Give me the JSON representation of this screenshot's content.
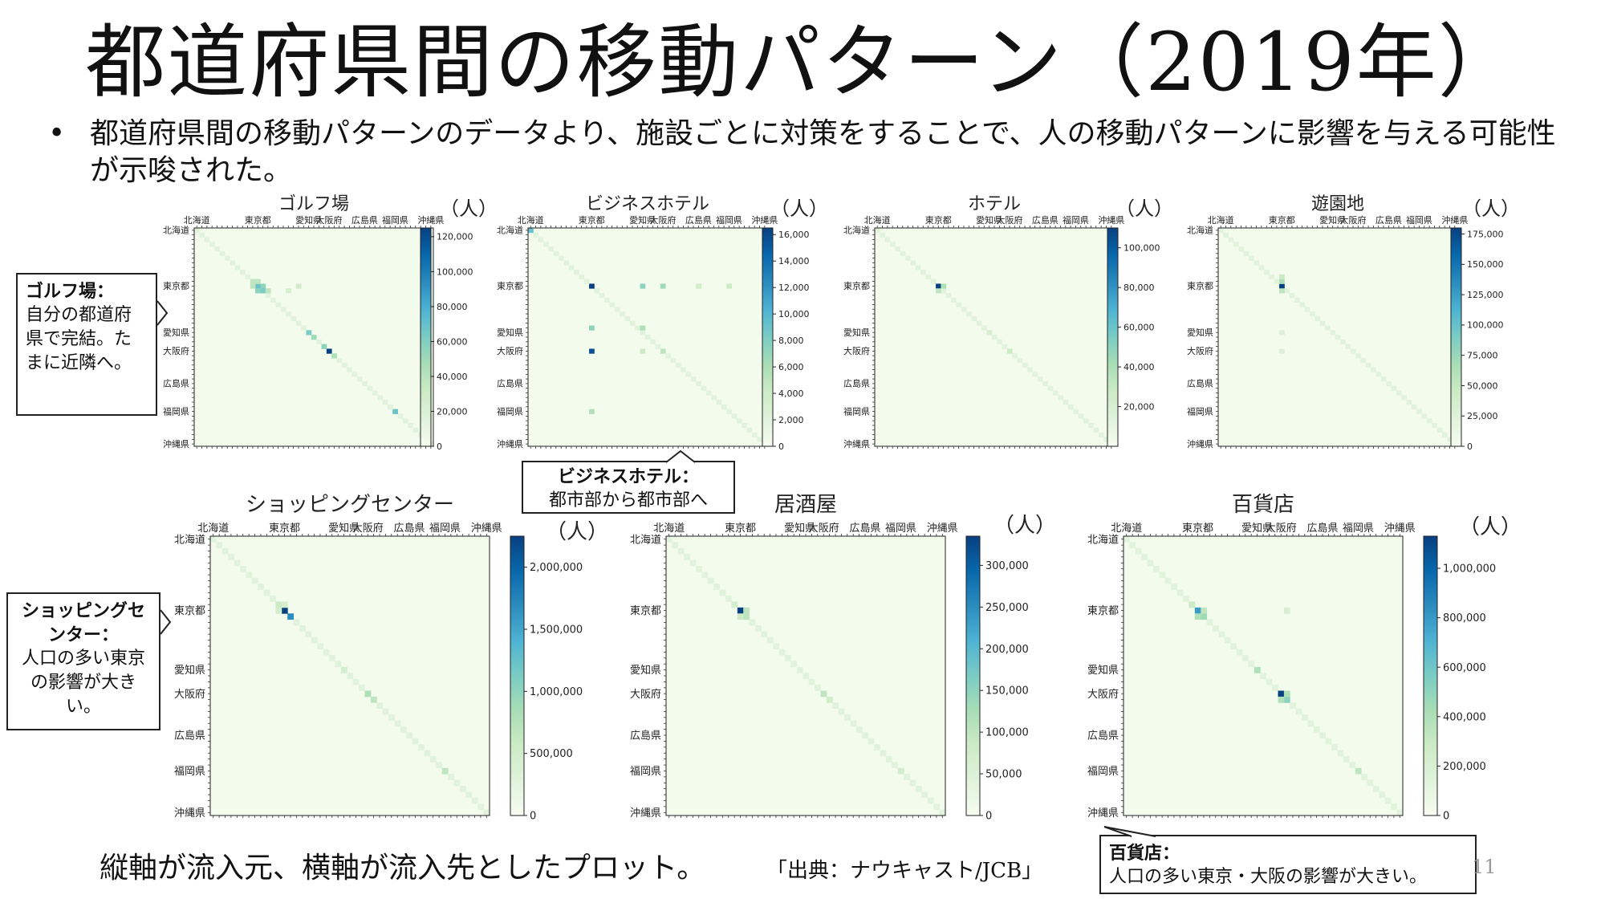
{
  "slide": {
    "title": "都道府県間の移動パターン（2019年）",
    "bullet": "都道府県間の移動パターンのデータより、施設ごとに対策をすることで、人の移動パターンに影響を与える可能性が示唆された。",
    "footer": "縦軸が流入元、横軸が流入先としたプロット。",
    "source": "「出典：ナウキャスト/JCB」",
    "page_number": "11",
    "colormap": "GnBu",
    "unit": "（人）"
  },
  "callouts": {
    "golf": {
      "head": "ゴルフ場：",
      "body": "自分の都道府県で完結。たまに近隣へ。"
    },
    "business_hotel": {
      "head": "ビジネスホテル：",
      "body": "都市部から都市部へ"
    },
    "shopping": {
      "head": "ショッピングセンター：",
      "body": "人口の多い東京の影響が大きい。"
    },
    "department": {
      "head": "百貨店：",
      "body": "人口の多い東京・大阪の影響が大きい。"
    }
  },
  "chart_data": [
    {
      "type": "heatmap",
      "title": "ゴルフ場",
      "unit": "（人）",
      "x_tick_labels": [
        "北海道",
        "東京都",
        "愛知県",
        "大阪府",
        "広島県",
        "福岡県",
        "沖縄県"
      ],
      "y_tick_labels": [
        "北海道",
        "東京都",
        "愛知県",
        "大阪府",
        "広島県",
        "福岡県",
        "沖縄県"
      ],
      "colorbar_ticks": [
        "0",
        "20,000",
        "40,000",
        "60,000",
        "80,000",
        "100,000",
        "120,000"
      ],
      "colorbar_range": [
        0,
        125000
      ]
    },
    {
      "type": "heatmap",
      "title": "ビジネスホテル",
      "unit": "（人）",
      "x_tick_labels": [
        "北海道",
        "東京都",
        "愛知県",
        "大阪府",
        "広島県",
        "福岡県",
        "沖縄県"
      ],
      "y_tick_labels": [
        "北海道",
        "東京都",
        "愛知県",
        "大阪府",
        "広島県",
        "福岡県",
        "沖縄県"
      ],
      "colorbar_ticks": [
        "0",
        "2,000",
        "4,000",
        "6,000",
        "8,000",
        "10,000",
        "12,000",
        "14,000",
        "16,000"
      ],
      "colorbar_range": [
        0,
        16500
      ]
    },
    {
      "type": "heatmap",
      "title": "ホテル",
      "unit": "（人）",
      "x_tick_labels": [
        "北海道",
        "東京都",
        "愛知県",
        "大阪府",
        "広島県",
        "福岡県",
        "沖縄県"
      ],
      "y_tick_labels": [
        "北海道",
        "東京都",
        "愛知県",
        "大阪府",
        "広島県",
        "福岡県",
        "沖縄県"
      ],
      "colorbar_ticks": [
        "20,000",
        "40,000",
        "60,000",
        "80,000",
        "100,000"
      ],
      "colorbar_range": [
        0,
        110000
      ]
    },
    {
      "type": "heatmap",
      "title": "遊園地",
      "unit": "（人）",
      "x_tick_labels": [
        "北海道",
        "東京都",
        "愛知県",
        "大阪府",
        "広島県",
        "福岡県",
        "沖縄県"
      ],
      "y_tick_labels": [
        "北海道",
        "東京都",
        "愛知県",
        "大阪府",
        "広島県",
        "福岡県",
        "沖縄県"
      ],
      "colorbar_ticks": [
        "0",
        "25,000",
        "50,000",
        "75,000",
        "100,000",
        "125,000",
        "150,000",
        "175,000"
      ],
      "colorbar_range": [
        0,
        180000
      ]
    },
    {
      "type": "heatmap",
      "title": "ショッピングセンター",
      "unit": "（人）",
      "x_tick_labels": [
        "北海道",
        "東京都",
        "愛知県",
        "大阪府",
        "広島県",
        "福岡県",
        "沖縄県"
      ],
      "y_tick_labels": [
        "北海道",
        "東京都",
        "愛知県",
        "大阪府",
        "広島県",
        "福岡県",
        "沖縄県"
      ],
      "colorbar_ticks": [
        "0",
        "500,000",
        "1,000,000",
        "1,500,000",
        "2,000,000"
      ],
      "colorbar_range": [
        0,
        2250000
      ]
    },
    {
      "type": "heatmap",
      "title": "居酒屋",
      "unit": "（人）",
      "x_tick_labels": [
        "北海道",
        "東京都",
        "愛知県",
        "大阪府",
        "広島県",
        "福岡県",
        "沖縄県"
      ],
      "y_tick_labels": [
        "北海道",
        "東京都",
        "愛知県",
        "大阪府",
        "広島県",
        "福岡県",
        "沖縄県"
      ],
      "colorbar_ticks": [
        "0",
        "50,000",
        "100,000",
        "150,000",
        "200,000",
        "250,000",
        "300,000"
      ],
      "colorbar_range": [
        0,
        335000
      ]
    },
    {
      "type": "heatmap",
      "title": "百貨店",
      "unit": "（人）",
      "x_tick_labels": [
        "北海道",
        "東京都",
        "愛知県",
        "大阪府",
        "広島県",
        "福岡県",
        "沖縄県"
      ],
      "y_tick_labels": [
        "北海道",
        "東京都",
        "愛知県",
        "大阪府",
        "広島県",
        "福岡県",
        "沖縄県"
      ],
      "colorbar_ticks": [
        "0",
        "200,000",
        "400,000",
        "600,000",
        "800,000",
        "1,000,000"
      ],
      "colorbar_range": [
        0,
        1130000
      ]
    }
  ]
}
